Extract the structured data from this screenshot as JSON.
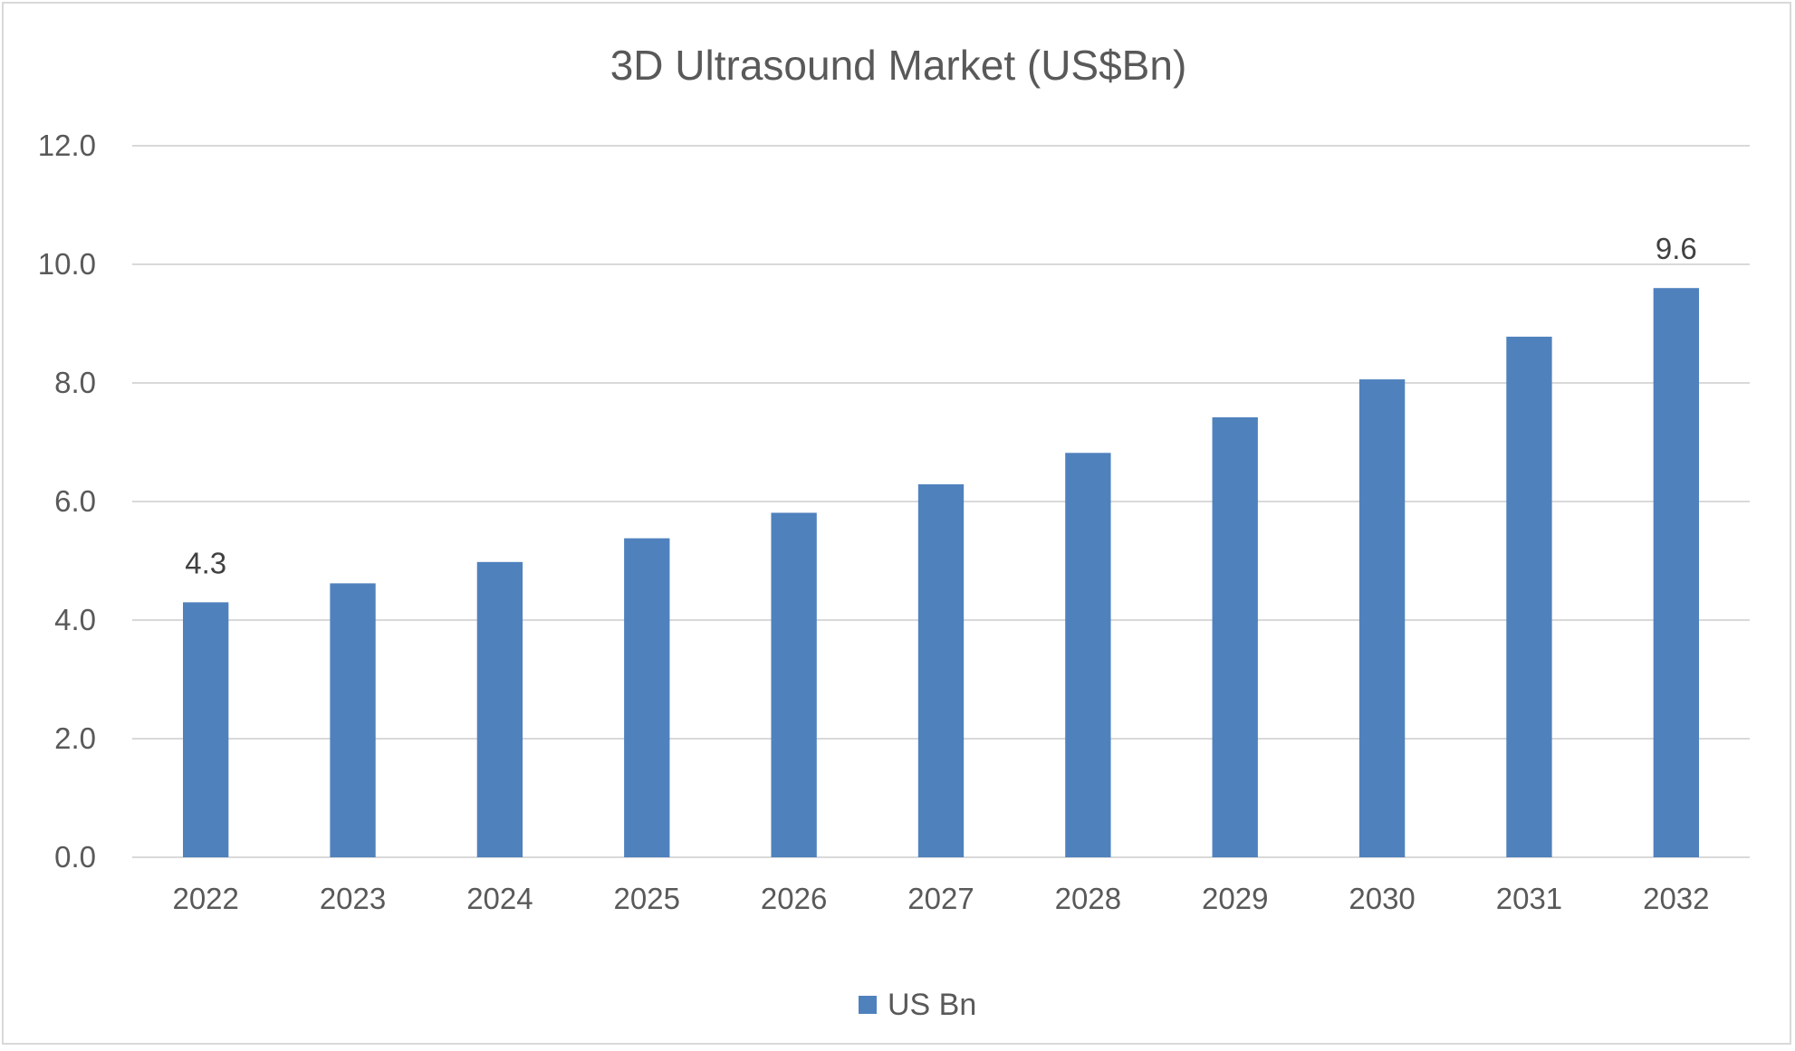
{
  "chart_data": {
    "type": "bar",
    "title": "3D Ultrasound Market (US$Bn)",
    "xlabel": "",
    "ylabel": "",
    "categories": [
      "2022",
      "2023",
      "2024",
      "2025",
      "2026",
      "2027",
      "2028",
      "2029",
      "2030",
      "2031",
      "2032"
    ],
    "series": [
      {
        "name": "US Bn",
        "values": [
          4.3,
          4.62,
          4.98,
          5.38,
          5.81,
          6.29,
          6.82,
          7.42,
          8.06,
          8.78,
          9.6
        ],
        "color": "#4f81bd"
      }
    ],
    "data_labels": [
      {
        "category": "2022",
        "text": "4.3"
      },
      {
        "category": "2032",
        "text": "9.6"
      }
    ],
    "ylim": [
      0,
      12
    ],
    "yticks": [
      "0.0",
      "2.0",
      "4.0",
      "6.0",
      "8.0",
      "10.0",
      "12.0"
    ],
    "grid": true,
    "legend_position": "bottom",
    "colors": {
      "bar": "#4f81bd",
      "grid": "#d9d9d9",
      "text": "#595959",
      "label": "#404040"
    }
  }
}
